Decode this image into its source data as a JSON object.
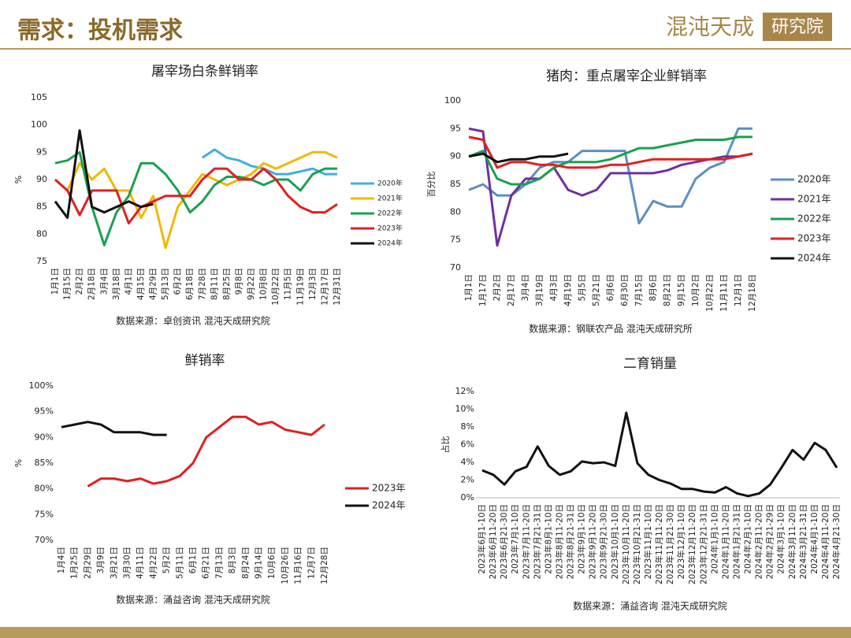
{
  "header": {
    "title": "需求：投机需求",
    "logo": [
      "混沌天成",
      "研究院"
    ]
  },
  "chart_data": [
    {
      "type": "line",
      "title": "屠宰场白条鲜销率",
      "y_label": "%",
      "source": "数据来源：卓创资讯 混沌天成研究院",
      "categories": [
        "1月1日",
        "1月15日",
        "2月2日",
        "2月18日",
        "3月4日",
        "3月18日",
        "4月1日",
        "4月15日",
        "4月29日",
        "5月13日",
        "6月2日",
        "6月18日",
        "7月28日",
        "8月11日",
        "8月25日",
        "9月8日",
        "9月22日",
        "10月8日",
        "10月22日",
        "11月5日",
        "11月19日",
        "12月3日",
        "12月17日",
        "12月31日"
      ],
      "ylim": [
        75,
        105
      ],
      "yticks": [
        75,
        80,
        85,
        90,
        95,
        100,
        105
      ],
      "grid": false,
      "series": [
        {
          "name": "2020年",
          "color": "#3fb0e0",
          "values": [
            null,
            null,
            null,
            null,
            null,
            null,
            null,
            null,
            null,
            null,
            null,
            null,
            94,
            95.5,
            94,
            93.5,
            92.5,
            92,
            91,
            91,
            91.5,
            92,
            91,
            91
          ]
        },
        {
          "name": "2021年",
          "color": "#f2b800",
          "values": [
            90,
            88,
            93,
            90,
            92,
            88,
            88,
            83,
            87,
            77.5,
            85,
            88,
            91,
            90,
            89,
            90,
            91,
            93,
            92,
            93,
            94,
            95,
            95,
            94
          ]
        },
        {
          "name": "2022年",
          "color": "#1aa050",
          "values": [
            93,
            93.5,
            95,
            85,
            78,
            84,
            87,
            93,
            93,
            91,
            88,
            84,
            86,
            89,
            90.5,
            90.5,
            90,
            89,
            90,
            90,
            88,
            91,
            92,
            92
          ]
        },
        {
          "name": "2023年",
          "color": "#e02020",
          "values": [
            90,
            88,
            83.5,
            88,
            88,
            88,
            82,
            85,
            86,
            87,
            87,
            87,
            90,
            92,
            92,
            90,
            90,
            92,
            90,
            87,
            85,
            84,
            84,
            85.5
          ]
        },
        {
          "name": "2024年",
          "color": "#111111",
          "values": [
            86,
            83,
            99,
            85,
            84,
            85,
            86,
            85,
            85.5,
            null,
            null,
            null,
            null,
            null,
            null,
            null,
            null,
            null,
            null,
            null,
            null,
            null,
            null,
            null
          ]
        }
      ]
    },
    {
      "type": "line",
      "title": "猪肉：重点屠宰企业鲜销率",
      "y_label": "百分比",
      "source": "数据来源：钢联农产品 混沌天成研究所",
      "categories": [
        "1月1日",
        "1月17日",
        "2月2日",
        "2月17日",
        "3月4日",
        "3月19日",
        "4月3日",
        "4月19日",
        "5月5日",
        "5月21日",
        "6月6日",
        "6月30日",
        "7月15日",
        "8月6日",
        "8月21日",
        "9月15日",
        "10月2日",
        "10月22日",
        "11月11日",
        "12月1日",
        "12月18日"
      ],
      "ylim": [
        70,
        100
      ],
      "yticks": [
        70,
        75,
        80,
        85,
        90,
        95,
        100
      ],
      "grid": false,
      "series": [
        {
          "name": "2020年",
          "color": "#5b8fc0",
          "values": [
            84,
            85,
            83,
            83,
            85,
            88,
            89,
            89,
            91,
            91,
            91,
            91,
            78,
            82,
            81,
            81,
            86,
            88,
            89,
            95,
            95
          ]
        },
        {
          "name": "2021年",
          "color": "#7030a0",
          "values": [
            95,
            94.5,
            74,
            83,
            86,
            86,
            88,
            84,
            83,
            84,
            87,
            87,
            87,
            87,
            87.5,
            88.5,
            89,
            89.5,
            90,
            90,
            90.5
          ]
        },
        {
          "name": "2022年",
          "color": "#1aa050",
          "values": [
            90,
            91,
            86,
            85,
            85,
            86,
            88,
            89,
            89,
            89,
            89.5,
            90.5,
            91.5,
            91.5,
            92,
            92.5,
            93,
            93,
            93,
            93.5,
            93.5
          ]
        },
        {
          "name": "2023年",
          "color": "#e02020",
          "values": [
            93.5,
            93,
            88,
            89,
            89,
            88.5,
            88.5,
            88,
            88,
            88,
            88.5,
            88.5,
            89,
            89.5,
            89.5,
            89.5,
            89.5,
            89.5,
            89.5,
            90,
            90.5
          ]
        },
        {
          "name": "2024年",
          "color": "#111111",
          "values": [
            90,
            90.5,
            89,
            89.5,
            89.5,
            90,
            90,
            90.5,
            null,
            null,
            null,
            null,
            null,
            null,
            null,
            null,
            null,
            null,
            null,
            null,
            null
          ]
        }
      ]
    },
    {
      "type": "line",
      "title": "鲜销率",
      "y_label": "%",
      "source": "数据来源：涌益咨询 混沌天成研究院",
      "categories": [
        "1月4日",
        "1月25日",
        "2月29日",
        "3月9日",
        "3月21日",
        "3月30日",
        "4月11日",
        "4月22日",
        "5月2日",
        "5月11日",
        "6月1日",
        "6月21日",
        "7月13日",
        "8月3日",
        "8月24日",
        "9月14日",
        "10月6日",
        "10月26日",
        "11月16日",
        "12月7日",
        "12月28日"
      ],
      "ylim": [
        70,
        100
      ],
      "yticks": [
        {
          "value": 70,
          "label": "70%"
        },
        {
          "value": 75,
          "label": "75%"
        },
        {
          "value": 80,
          "label": "80%"
        },
        {
          "value": 85,
          "label": "85%"
        },
        {
          "value": 90,
          "label": "90%"
        },
        {
          "value": 95,
          "label": "95%"
        },
        {
          "value": 100,
          "label": "100%"
        }
      ],
      "grid": false,
      "series": [
        {
          "name": "2023年",
          "color": "#e02020",
          "values": [
            null,
            null,
            80.5,
            82,
            82,
            81.5,
            82,
            81,
            81.5,
            82.5,
            85,
            90,
            92,
            94,
            94,
            92.5,
            93,
            91.5,
            91,
            90.5,
            92.5
          ]
        },
        {
          "name": "2024年",
          "color": "#111111",
          "values": [
            92,
            92.5,
            93,
            92.5,
            91,
            91,
            91,
            90.5,
            90.5,
            null,
            null,
            null,
            null,
            null,
            null,
            null,
            null,
            null,
            null,
            null,
            null
          ]
        }
      ]
    },
    {
      "type": "line",
      "title": "二育销量",
      "y_label": "占比",
      "source": "数据来源：涌益咨询 混沌天成研究院",
      "categories": [
        "2023年6月1-10日",
        "2023年6月11-20日",
        "2023年6月21-30日",
        "2023年7月1-10日",
        "2023年7月11-20日",
        "2023年7月21-31日",
        "2023年8月1-10日",
        "2023年8月11-20日",
        "2023年8月21-31日",
        "2023年9月1-10日",
        "2023年9月11-20日",
        "2023年9月21-30日",
        "2023年10月1-10日",
        "2023年10月11-20日",
        "2023年10月21-31日",
        "2023年11月1-10日",
        "2023年11月11-20日",
        "2023年11月21-30日",
        "2023年12月1-10日",
        "2023年12月11-20日",
        "2023年12月21-31日",
        "2024年1月1-10日",
        "2024年1月11-20日",
        "2024年1月21-31日",
        "2024年2月1-10日",
        "2024年2月11-20日",
        "2024年2月21-29日",
        "2024年3月1-10日",
        "2024年3月11-20日",
        "2024年3月21-31日",
        "2024年4月1-10日",
        "2024年4月11-20日",
        "2024年4月21-30日"
      ],
      "ylim": [
        0,
        12
      ],
      "yticks": [
        {
          "value": 0,
          "label": "0%"
        },
        {
          "value": 2,
          "label": "2%"
        },
        {
          "value": 4,
          "label": "4%"
        },
        {
          "value": 6,
          "label": "6%"
        },
        {
          "value": 8,
          "label": "8%"
        },
        {
          "value": 10,
          "label": "10%"
        },
        {
          "value": 12,
          "label": "12%"
        }
      ],
      "grid": false,
      "color": "#111111",
      "values": [
        3.1,
        2.6,
        1.5,
        3.0,
        3.5,
        5.8,
        3.6,
        2.6,
        3.0,
        4.1,
        3.9,
        4.0,
        3.6,
        9.6,
        3.9,
        2.6,
        2.0,
        1.6,
        1.0,
        1.0,
        0.7,
        0.6,
        1.2,
        0.5,
        0.2,
        0.5,
        1.5,
        3.4,
        5.4,
        4.3,
        6.2,
        5.4,
        3.4
      ]
    }
  ]
}
